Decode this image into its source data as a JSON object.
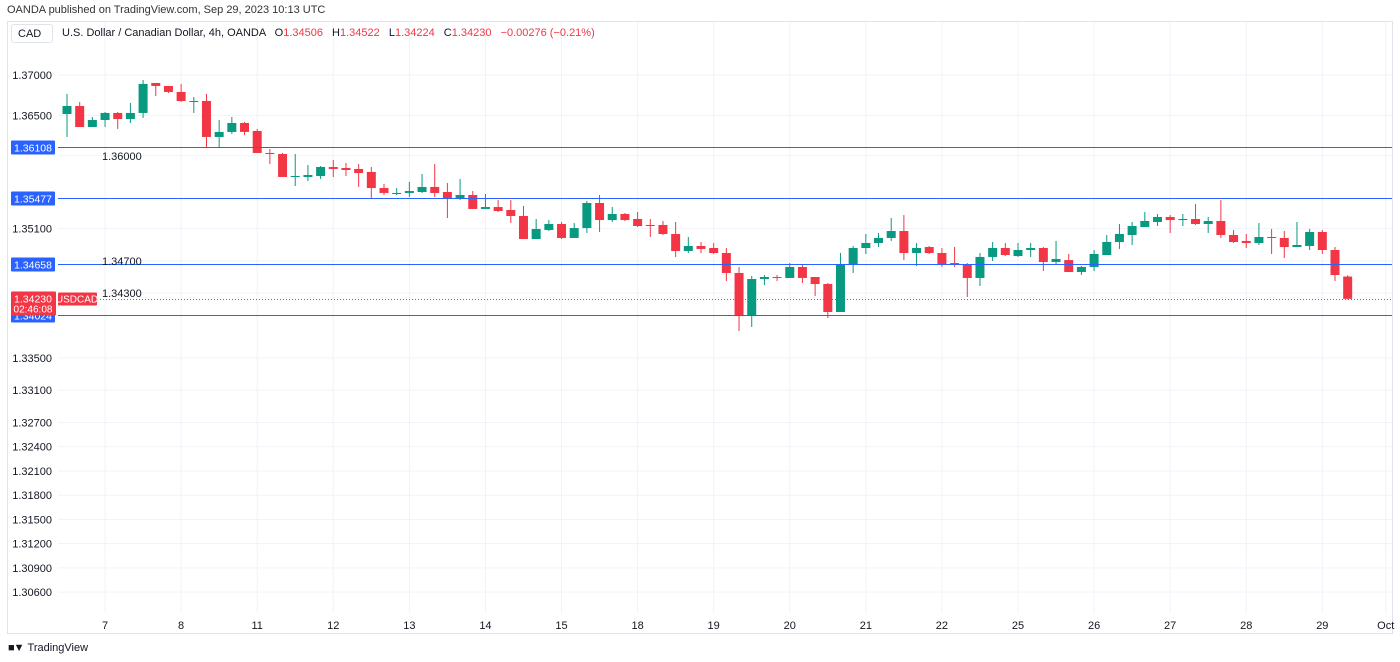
{
  "header": {
    "publisher": "OANDA published on TradingView.com, Sep 29, 2023 10:13 UTC",
    "symbol_box": "CAD",
    "instrument": "U.S. Dollar / Canadian Dollar, 4h, OANDA",
    "ohlc": {
      "o_label": "O",
      "o": "1.34506",
      "h_label": "H",
      "h": "1.34522",
      "l_label": "L",
      "l": "1.34224",
      "c_label": "C",
      "c": "1.34230",
      "change": "−0.00276 (−0.21%)"
    }
  },
  "footer": {
    "logo_text": "TradingView"
  },
  "colors": {
    "up": "#089981",
    "down": "#f23645",
    "hline": "#2962ff",
    "grid": "#f0f3fa"
  },
  "chart_data": {
    "type": "candlestick",
    "title": "U.S. Dollar / Canadian Dollar, 4h, OANDA",
    "ylim": [
      1.30404,
      1.37371
    ],
    "y_ticks": [
      "1.37000",
      "1.36500",
      "1.36000",
      "1.35100",
      "1.34700",
      "1.34300",
      "1.33500",
      "1.33100",
      "1.32700",
      "1.32400",
      "1.32100",
      "1.31800",
      "1.31500",
      "1.31200",
      "1.30900",
      "1.30600"
    ],
    "x_ticks": [
      {
        "label": "7",
        "bar": 3
      },
      {
        "label": "8",
        "bar": 9
      },
      {
        "label": "11",
        "bar": 15
      },
      {
        "label": "12",
        "bar": 21
      },
      {
        "label": "13",
        "bar": 27
      },
      {
        "label": "14",
        "bar": 33
      },
      {
        "label": "15",
        "bar": 39
      },
      {
        "label": "18",
        "bar": 45
      },
      {
        "label": "19",
        "bar": 51
      },
      {
        "label": "20",
        "bar": 57
      },
      {
        "label": "21",
        "bar": 63
      },
      {
        "label": "22",
        "bar": 69
      },
      {
        "label": "25",
        "bar": 75
      },
      {
        "label": "26",
        "bar": 81
      },
      {
        "label": "27",
        "bar": 87
      },
      {
        "label": "28",
        "bar": 93
      },
      {
        "label": "29",
        "bar": 99
      },
      {
        "label": "Oct",
        "bar": 104
      }
    ],
    "horizontal_lines": [
      {
        "value": 1.36108,
        "label": "1.36108"
      },
      {
        "value": 1.35477,
        "label": "1.35477"
      },
      {
        "value": 1.34658,
        "label": "1.34658"
      },
      {
        "value": 1.34024,
        "label": "1.34024"
      }
    ],
    "last_price": {
      "value": 1.3423,
      "label": "1.34230",
      "countdown": "02:46:08",
      "symbol": "USDCAD"
    },
    "candles": [
      [
        1.36517,
        1.36765,
        1.36233,
        1.36616
      ],
      [
        1.36616,
        1.36666,
        1.36356,
        1.36356
      ],
      [
        1.36356,
        1.3648,
        1.36356,
        1.36443
      ],
      [
        1.36443,
        1.36542,
        1.36356,
        1.3653
      ],
      [
        1.3653,
        1.36542,
        1.36332,
        1.36455
      ],
      [
        1.36455,
        1.36653,
        1.36406,
        1.3653
      ],
      [
        1.3653,
        1.36938,
        1.36468,
        1.36889
      ],
      [
        1.36901,
        1.36901,
        1.3674,
        1.36864
      ],
      [
        1.36864,
        1.36864,
        1.36777,
        1.3679
      ],
      [
        1.3679,
        1.36889,
        1.36666,
        1.36678
      ],
      [
        1.36672,
        1.36728,
        1.3653,
        1.36678
      ],
      [
        1.36678,
        1.36765,
        1.36097,
        1.36233
      ],
      [
        1.36233,
        1.36443,
        1.36109,
        1.36295
      ],
      [
        1.36295,
        1.3648,
        1.3627,
        1.36406
      ],
      [
        1.36406,
        1.36418,
        1.36257,
        1.36295
      ],
      [
        1.36307,
        1.36332,
        1.36035,
        1.36035
      ],
      [
        1.36035,
        1.36084,
        1.35899,
        1.36022
      ],
      [
        1.36022,
        1.36035,
        1.35738,
        1.35738
      ],
      [
        1.35738,
        1.36022,
        1.35626,
        1.3575
      ],
      [
        1.35738,
        1.35886,
        1.35688,
        1.35762
      ],
      [
        1.3575,
        1.35874,
        1.35713,
        1.35861
      ],
      [
        1.35861,
        1.35948,
        1.35738,
        1.35837
      ],
      [
        1.35849,
        1.35911,
        1.3575,
        1.35824
      ],
      [
        1.35837,
        1.35899,
        1.35614,
        1.35787
      ],
      [
        1.358,
        1.35861,
        1.35465,
        1.35601
      ],
      [
        1.35601,
        1.35651,
        1.35515,
        1.3554
      ],
      [
        1.35527,
        1.35601,
        1.35515,
        1.3554
      ],
      [
        1.3554,
        1.35676,
        1.3549,
        1.35564
      ],
      [
        1.35552,
        1.35775,
        1.3554,
        1.35614
      ],
      [
        1.35614,
        1.35899,
        1.3549,
        1.3554
      ],
      [
        1.35552,
        1.35663,
        1.3523,
        1.35478
      ],
      [
        1.35478,
        1.35713,
        1.35453,
        1.35515
      ],
      [
        1.35515,
        1.35564,
        1.35342,
        1.35342
      ],
      [
        1.35342,
        1.35527,
        1.35342,
        1.35366
      ],
      [
        1.35366,
        1.35453,
        1.35304,
        1.35317
      ],
      [
        1.35329,
        1.35453,
        1.35168,
        1.35255
      ],
      [
        1.35255,
        1.35379,
        1.3497,
        1.3497
      ],
      [
        1.3497,
        1.35218,
        1.3497,
        1.35094
      ],
      [
        1.35082,
        1.35205,
        1.35069,
        1.35156
      ],
      [
        1.35156,
        1.35181,
        1.3497,
        1.34983
      ],
      [
        1.34983,
        1.35168,
        1.34983,
        1.35106
      ],
      [
        1.35106,
        1.35441,
        1.35045,
        1.35416
      ],
      [
        1.35416,
        1.35515,
        1.35057,
        1.35205
      ],
      [
        1.35205,
        1.35366,
        1.35181,
        1.3528
      ],
      [
        1.3528,
        1.35292,
        1.35193,
        1.35205
      ],
      [
        1.35218,
        1.35304,
        1.35119,
        1.35131
      ],
      [
        1.35144,
        1.35218,
        1.34995,
        1.35131
      ],
      [
        1.35144,
        1.35193,
        1.3502,
        1.35032
      ],
      [
        1.35032,
        1.35181,
        1.34748,
        1.34822
      ],
      [
        1.34822,
        1.34995,
        1.34797,
        1.34884
      ],
      [
        1.34884,
        1.34933,
        1.34797,
        1.34847
      ],
      [
        1.34859,
        1.34921,
        1.34785,
        1.34797
      ],
      [
        1.34797,
        1.34859,
        1.3445,
        1.3455
      ],
      [
        1.3455,
        1.34624,
        1.33832,
        1.34017
      ],
      [
        1.34017,
        1.34512,
        1.33881,
        1.34475
      ],
      [
        1.34475,
        1.34525,
        1.34401,
        1.345
      ],
      [
        1.345,
        1.34525,
        1.3445,
        1.34488
      ],
      [
        1.34488,
        1.34673,
        1.34488,
        1.34624
      ],
      [
        1.34624,
        1.34661,
        1.34426,
        1.34488
      ],
      [
        1.345,
        1.345,
        1.34265,
        1.34413
      ],
      [
        1.34413,
        1.34426,
        1.33993,
        1.34067
      ],
      [
        1.34067,
        1.34797,
        1.34067,
        1.34661
      ],
      [
        1.34661,
        1.34884,
        1.3455,
        1.34859
      ],
      [
        1.34859,
        1.35032,
        1.34785,
        1.34921
      ],
      [
        1.34921,
        1.35045,
        1.34871,
        1.34983
      ],
      [
        1.34983,
        1.3523,
        1.34946,
        1.35069
      ],
      [
        1.35069,
        1.35267,
        1.3471,
        1.34797
      ],
      [
        1.34797,
        1.34921,
        1.34636,
        1.34859
      ],
      [
        1.34871,
        1.34884,
        1.34785,
        1.34797
      ],
      [
        1.34797,
        1.34859,
        1.34624,
        1.34661
      ],
      [
        1.34673,
        1.34871,
        1.34624,
        1.34649
      ],
      [
        1.34661,
        1.34673,
        1.34252,
        1.34488
      ],
      [
        1.34488,
        1.34797,
        1.34389,
        1.34748
      ],
      [
        1.34748,
        1.34933,
        1.34698,
        1.34859
      ],
      [
        1.34859,
        1.34921,
        1.3476,
        1.34772
      ],
      [
        1.3476,
        1.34921,
        1.34748,
        1.34834
      ],
      [
        1.34834,
        1.34921,
        1.34748,
        1.34859
      ],
      [
        1.34859,
        1.34871,
        1.34574,
        1.34686
      ],
      [
        1.34686,
        1.34946,
        1.34649,
        1.34723
      ],
      [
        1.3471,
        1.34785,
        1.34562,
        1.34562
      ],
      [
        1.34562,
        1.34636,
        1.34525,
        1.34624
      ],
      [
        1.34624,
        1.34834,
        1.34574,
        1.34785
      ],
      [
        1.34772,
        1.3502,
        1.34772,
        1.34933
      ],
      [
        1.34933,
        1.35156,
        1.34847,
        1.35032
      ],
      [
        1.3502,
        1.35181,
        1.34896,
        1.35131
      ],
      [
        1.35119,
        1.35304,
        1.35119,
        1.35193
      ],
      [
        1.35181,
        1.3528,
        1.35131,
        1.35243
      ],
      [
        1.35243,
        1.35267,
        1.35045,
        1.35205
      ],
      [
        1.35205,
        1.3528,
        1.35131,
        1.35218
      ],
      [
        1.35218,
        1.35404,
        1.35144,
        1.35156
      ],
      [
        1.35156,
        1.35243,
        1.35045,
        1.35193
      ],
      [
        1.35193,
        1.35453,
        1.34983,
        1.3502
      ],
      [
        1.3502,
        1.35082,
        1.34921,
        1.34933
      ],
      [
        1.34946,
        1.35032,
        1.34859,
        1.34921
      ],
      [
        1.34921,
        1.35168,
        1.34896,
        1.34995
      ],
      [
        1.34995,
        1.35094,
        1.34785,
        1.34983
      ],
      [
        1.34983,
        1.35069,
        1.34735,
        1.34871
      ],
      [
        1.34871,
        1.35181,
        1.34871,
        1.34896
      ],
      [
        1.34884,
        1.35094,
        1.34834,
        1.35057
      ],
      [
        1.35057,
        1.35082,
        1.34785,
        1.34834
      ],
      [
        1.34834,
        1.34871,
        1.3445,
        1.34525
      ],
      [
        1.34506,
        1.34522,
        1.34224,
        1.3423
      ]
    ]
  }
}
